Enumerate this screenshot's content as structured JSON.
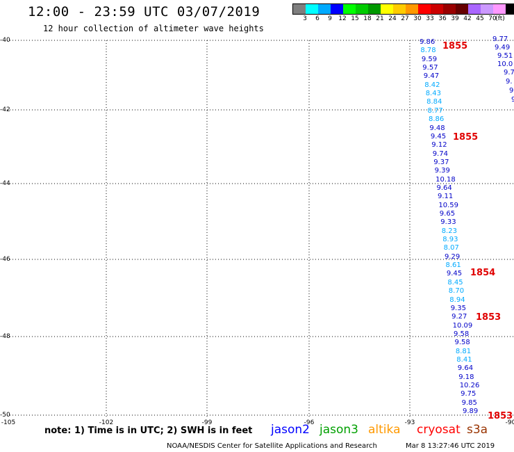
{
  "header": {
    "title": "12:00 - 23:59 UTC 03/07/2019",
    "subtitle": "12 hour collection of altimeter wave heights"
  },
  "colorbar": {
    "colors": [
      "#7f7f7f",
      "#00ffff",
      "#00aaff",
      "#0000ff",
      "#00ff00",
      "#00cc00",
      "#009900",
      "#ffff00",
      "#ffcc00",
      "#ff9900",
      "#ff0000",
      "#cc0000",
      "#990000",
      "#660000",
      "#aa66ff",
      "#cc99ff",
      "#ff99ff",
      "#000000"
    ],
    "labels": [
      "3",
      "6",
      "9",
      "12",
      "15",
      "18",
      "21",
      "24",
      "27",
      "30",
      "33",
      "36",
      "39",
      "42",
      "45",
      "70"
    ],
    "unit": "(ft)"
  },
  "axes": {
    "lat_labels": [
      "-40",
      "-42",
      "-44",
      "-46",
      "-48",
      "-50"
    ],
    "lon_labels": [
      "-105",
      "-102",
      "-99",
      "-96",
      "-93",
      "-90"
    ]
  },
  "observations": {
    "main_track": [
      {
        "v": "9.86",
        "c": "#0000c8"
      },
      {
        "v": "8.78",
        "c": "#00aaff"
      },
      {
        "v": "9.59",
        "c": "#0000c8"
      },
      {
        "v": "9.57",
        "c": "#0000c8"
      },
      {
        "v": "9.47",
        "c": "#0000c8"
      },
      {
        "v": "8.42",
        "c": "#00aaff"
      },
      {
        "v": "8.43",
        "c": "#00aaff"
      },
      {
        "v": "8.84",
        "c": "#00aaff"
      },
      {
        "v": "8.77",
        "c": "#00aaff"
      },
      {
        "v": "8.86",
        "c": "#00aaff"
      },
      {
        "v": "9.48",
        "c": "#0000c8"
      },
      {
        "v": "9.45",
        "c": "#0000c8"
      },
      {
        "v": "9.12",
        "c": "#0000c8"
      },
      {
        "v": "9.74",
        "c": "#0000c8"
      },
      {
        "v": "9.37",
        "c": "#0000c8"
      },
      {
        "v": "9.39",
        "c": "#0000c8"
      },
      {
        "v": "10.18",
        "c": "#0000c8"
      },
      {
        "v": "9.64",
        "c": "#0000c8"
      },
      {
        "v": "9.11",
        "c": "#0000c8"
      },
      {
        "v": "10.59",
        "c": "#0000c8"
      },
      {
        "v": "9.65",
        "c": "#0000c8"
      },
      {
        "v": "9.33",
        "c": "#0000c8"
      },
      {
        "v": "8.23",
        "c": "#00aaff"
      },
      {
        "v": "8.93",
        "c": "#00aaff"
      },
      {
        "v": "8.07",
        "c": "#00aaff"
      },
      {
        "v": "9.29",
        "c": "#0000c8"
      },
      {
        "v": "8.61",
        "c": "#00aaff"
      },
      {
        "v": "9.45",
        "c": "#0000c8"
      },
      {
        "v": "8.45",
        "c": "#00aaff"
      },
      {
        "v": "8.70",
        "c": "#00aaff"
      },
      {
        "v": "8.94",
        "c": "#00aaff"
      },
      {
        "v": "9.35",
        "c": "#0000c8"
      },
      {
        "v": "9.27",
        "c": "#0000c8"
      },
      {
        "v": "10.09",
        "c": "#0000c8"
      },
      {
        "v": "9.58",
        "c": "#0000c8"
      },
      {
        "v": "9.58",
        "c": "#0000c8"
      },
      {
        "v": "8.81",
        "c": "#00aaff"
      },
      {
        "v": "8.41",
        "c": "#00aaff"
      },
      {
        "v": "9.64",
        "c": "#0000c8"
      },
      {
        "v": "9.18",
        "c": "#0000c8"
      },
      {
        "v": "10.26",
        "c": "#0000c8"
      },
      {
        "v": "9.75",
        "c": "#0000c8"
      },
      {
        "v": "9.85",
        "c": "#0000c8"
      },
      {
        "v": "9.89",
        "c": "#0000c8"
      }
    ],
    "edge_track": [
      {
        "v": "9.77",
        "c": "#0000c8"
      },
      {
        "v": "9.49",
        "c": "#0000c8"
      },
      {
        "v": "9.51",
        "c": "#0000c8"
      },
      {
        "v": "10.0",
        "c": "#0000c8"
      },
      {
        "v": "9.7",
        "c": "#0000c8"
      },
      {
        "v": "9.",
        "c": "#0000c8"
      },
      {
        "v": "9",
        "c": "#0000c8"
      },
      {
        "v": "9",
        "c": "#0000c8"
      }
    ],
    "time_labels": [
      "1855",
      "1855",
      "1854",
      "1853",
      "1853"
    ]
  },
  "footer": {
    "note": "note:  1) Time is in UTC; 2) SWH is in feet",
    "legend": [
      {
        "label": "jason2",
        "color": "#0000ff"
      },
      {
        "label": "jason3",
        "color": "#00a000"
      },
      {
        "label": "altika",
        "color": "#ff9900"
      },
      {
        "label": "cryosat",
        "color": "#ff0000"
      },
      {
        "label": "s3a",
        "color": "#993300"
      }
    ],
    "credit": "NOAA/NESDIS Center for Satellite Applications and Research",
    "timestamp": "Mar  8 13:27:46 UTC 2019"
  }
}
